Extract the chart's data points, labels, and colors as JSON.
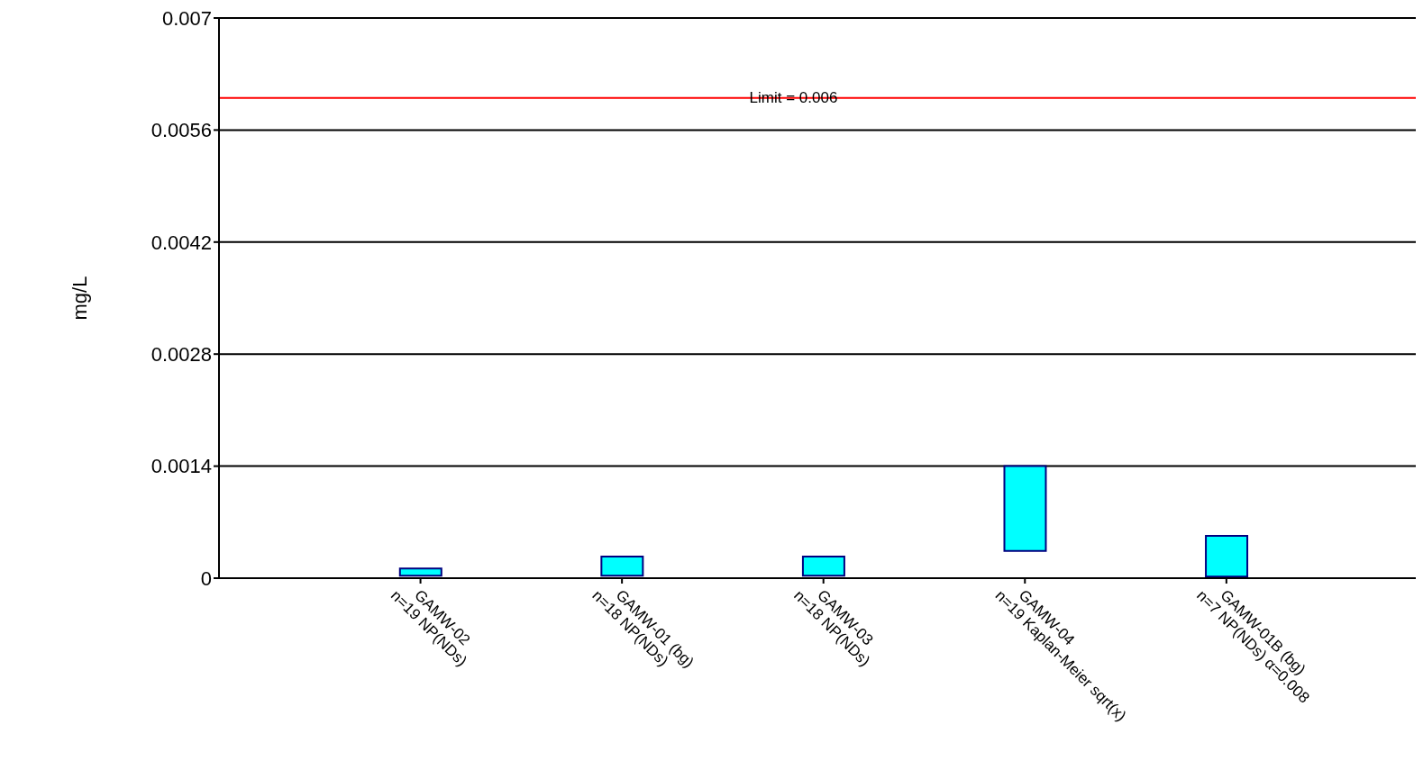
{
  "chart_data": {
    "type": "bar",
    "ylabel": "mg/L",
    "categories": [
      "GAMW-02\nn=19 NP(NDs)",
      "GAMW-01 (bg)\nn=18 NP(NDs)",
      "GAMW-03\nn=18 NP(NDs)",
      "GAMW-04\nn=19 Kaplan-Meier sqrt(x)",
      "GAMW-01B (bg)\nn=7 NP(NDs) α=0.008"
    ],
    "base": [
      3e-05,
      3e-05,
      3e-05,
      0.00034,
      2e-05
    ],
    "values": [
      9e-05,
      0.00024,
      0.00024,
      0.00106,
      0.00051
    ],
    "color": "#00ffff",
    "ylim": [
      0,
      0.007
    ],
    "yticks": [
      0,
      0.0014,
      0.0028,
      0.0042,
      0.0056,
      0.007
    ],
    "grid": "y",
    "ref_lines": [
      {
        "axis": "y",
        "value": 0.006,
        "label": "Limit = 0.006",
        "color": "#ff0000"
      }
    ]
  }
}
